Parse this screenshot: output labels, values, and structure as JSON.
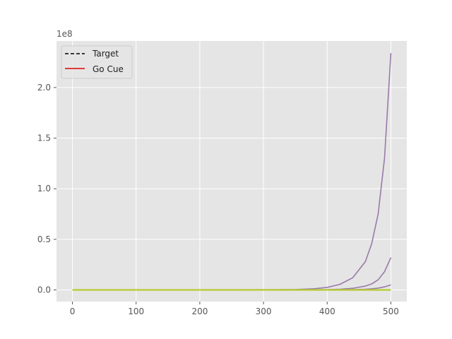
{
  "chart_data": {
    "type": "line",
    "title": "",
    "xlabel": "",
    "ylabel": "",
    "offset_label": "1e8",
    "xlim": [
      -25,
      525
    ],
    "ylim": [
      -11500000,
      246000000
    ],
    "y_scale_factor": 100000000,
    "grid": true,
    "x_ticks": [
      0,
      100,
      200,
      300,
      400,
      500
    ],
    "x_tick_labels": [
      "0",
      "100",
      "200",
      "300",
      "400",
      "500"
    ],
    "y_ticks": [
      0,
      50000000,
      100000000,
      150000000,
      200000000
    ],
    "y_tick_labels": [
      "0.0",
      "0.5",
      "1.0",
      "1.5",
      "2.0"
    ],
    "legend": {
      "placement": "top-left",
      "entries": [
        {
          "label": "Target",
          "color": "#000000",
          "style": "dashed"
        },
        {
          "label": "Go Cue",
          "color": "#e00000",
          "style": "solid"
        }
      ]
    },
    "series": [
      {
        "color": "#9a7aa8",
        "x": [
          0,
          300,
          350,
          380,
          400,
          420,
          440,
          460,
          470,
          480,
          490,
          500
        ],
        "values": [
          0,
          60000,
          400000,
          1200000,
          2500000,
          5500000,
          12000000,
          28000000,
          46000000,
          75000000,
          130000000,
          234000000
        ]
      },
      {
        "color": "#9a7aa8",
        "x": [
          0,
          400,
          420,
          440,
          460,
          470,
          480,
          490,
          500
        ],
        "values": [
          0,
          300000,
          700000,
          1600000,
          3800000,
          6000000,
          10000000,
          18000000,
          32000000
        ]
      },
      {
        "color": "#9a7aa8",
        "x": [
          0,
          420,
          440,
          460,
          470,
          480,
          490,
          500
        ],
        "values": [
          0,
          100000,
          300000,
          700000,
          1100000,
          1800000,
          3000000,
          5000000
        ]
      },
      {
        "color": "#333333",
        "x": [
          0,
          500
        ],
        "values": [
          0,
          0
        ]
      },
      {
        "color": "#b8cc30",
        "x": [
          0,
          500
        ],
        "values": [
          0,
          0
        ]
      }
    ],
    "colors": {
      "axes_background": "#e5e5e5",
      "grid": "#ffffff",
      "tick": "#555555"
    }
  }
}
